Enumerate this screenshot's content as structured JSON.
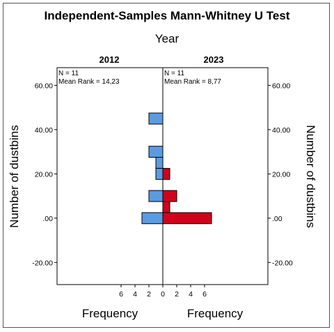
{
  "chart_data": {
    "type": "bar",
    "title": "Independent-Samples Mann-Whitney U Test",
    "subtitle": "Year",
    "ylabel": "Number of dustbins",
    "xlabel": "Frequency",
    "ylim": [
      -30,
      68
    ],
    "y_ticks": [
      60,
      40,
      20,
      0,
      -20
    ],
    "y_tick_labels": [
      "60.00",
      "40.00",
      "20.00",
      ".00",
      "-20.00"
    ],
    "x_ticks": [
      6,
      4,
      2,
      0,
      2,
      4,
      6
    ],
    "bin_width": 5,
    "groups": [
      {
        "name": "2012",
        "n_label": "N = 11",
        "mean_rank_label": "Mean Rank = 14,23",
        "color": "#5B9BE0",
        "bins": [
          {
            "center": 45,
            "count": 2
          },
          {
            "center": 30,
            "count": 2
          },
          {
            "center": 25,
            "count": 1
          },
          {
            "center": 20,
            "count": 1
          },
          {
            "center": 10,
            "count": 2
          },
          {
            "center": 0,
            "count": 3
          }
        ]
      },
      {
        "name": "2023",
        "n_label": "N = 11",
        "mean_rank_label": "Mean Rank = 8,77",
        "color": "#D0021B",
        "bins": [
          {
            "center": 20,
            "count": 1
          },
          {
            "center": 10,
            "count": 2
          },
          {
            "center": 5,
            "count": 1
          },
          {
            "center": 0,
            "count": 7
          }
        ]
      }
    ]
  }
}
